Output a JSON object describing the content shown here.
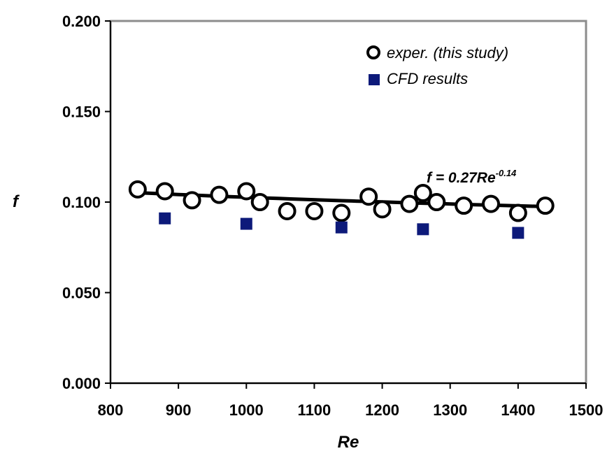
{
  "chart_data": {
    "type": "scatter",
    "title": "",
    "xlabel": "Re",
    "ylabel": "f",
    "xlim": [
      800,
      1500
    ],
    "ylim": [
      0,
      0.2
    ],
    "x_ticks": [
      "800",
      "900",
      "1000",
      "1100",
      "1200",
      "1300",
      "1400",
      "1500"
    ],
    "y_ticks": [
      "0.000",
      "0.050",
      "0.100",
      "0.150",
      "0.200"
    ],
    "grid": false,
    "legend_position": "top-right",
    "series": [
      {
        "name": "exper. (this study)",
        "marker": "open-circle",
        "color": "#000000",
        "x": [
          840,
          880,
          920,
          960,
          1000,
          1020,
          1060,
          1100,
          1140,
          1180,
          1200,
          1240,
          1260,
          1280,
          1320,
          1360,
          1400,
          1440
        ],
        "y": [
          0.107,
          0.106,
          0.101,
          0.104,
          0.106,
          0.1,
          0.095,
          0.095,
          0.094,
          0.103,
          0.096,
          0.099,
          0.105,
          0.1,
          0.098,
          0.099,
          0.094,
          0.098
        ]
      },
      {
        "name": "CFD results",
        "marker": "filled-square",
        "color": "#0d1a7a",
        "x": [
          880,
          1000,
          1140,
          1260,
          1400
        ],
        "y": [
          0.091,
          0.088,
          0.086,
          0.085,
          0.083
        ]
      }
    ],
    "trendline": {
      "label_main": "f = 0.27Re",
      "label_exponent": "-0.14",
      "coefficient": 0.27,
      "exponent": -0.14,
      "x_range": [
        840,
        1440
      ],
      "color": "#000000"
    }
  }
}
